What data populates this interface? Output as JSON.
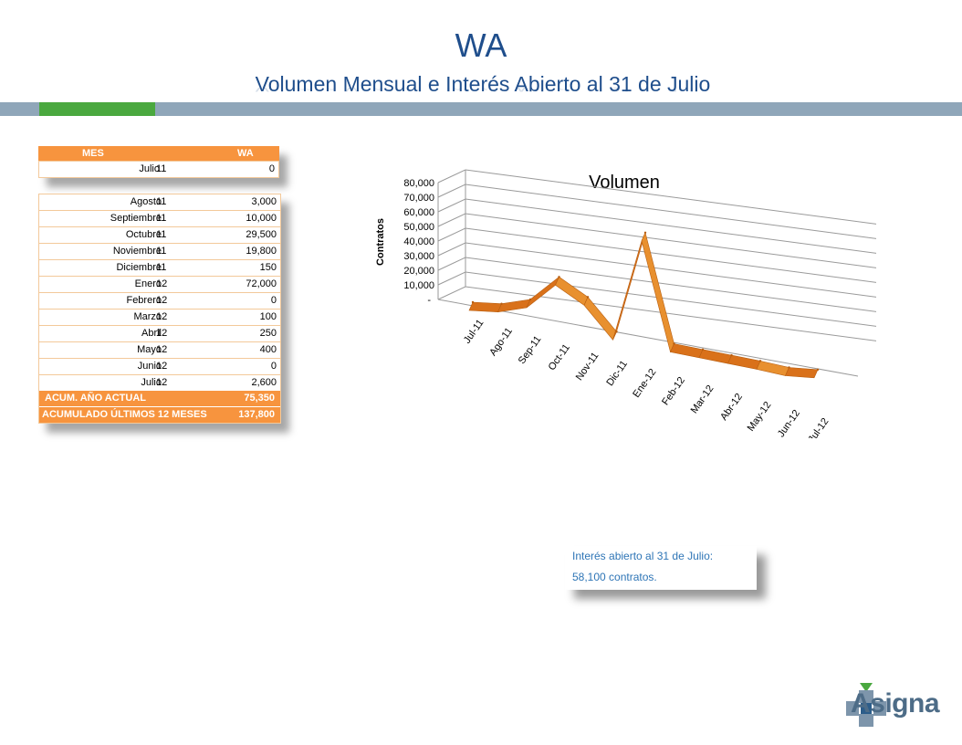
{
  "header": {
    "title": "WA",
    "subtitle": "Volumen Mensual e Interés Abierto al 31 de Julio"
  },
  "colors": {
    "accent": "#f7943e",
    "title": "#1f4e8c",
    "band": "#8fa6b9",
    "band_accent": "#4aa83f",
    "line": "#e07a1f"
  },
  "table_header": {
    "col1": "MES",
    "col2": "WA",
    "rows": [
      {
        "mes": "Julio",
        "yr": "11",
        "val": "0"
      }
    ]
  },
  "table_main": {
    "rows": [
      {
        "mes": "Agosto",
        "yr": "11",
        "val": "3,000"
      },
      {
        "mes": "Septiembre",
        "yr": "11",
        "val": "10,000"
      },
      {
        "mes": "Octubre",
        "yr": "11",
        "val": "29,500"
      },
      {
        "mes": "Noviembre",
        "yr": "11",
        "val": "19,800"
      },
      {
        "mes": "Diciembre",
        "yr": "11",
        "val": "150"
      },
      {
        "mes": "Enero",
        "yr": "12",
        "val": "72,000"
      },
      {
        "mes": "Febrero",
        "yr": "12",
        "val": "0"
      },
      {
        "mes": "Marzo",
        "yr": "12",
        "val": "100"
      },
      {
        "mes": "Abril",
        "yr": "12",
        "val": "250"
      },
      {
        "mes": "Mayo",
        "yr": "12",
        "val": "400"
      },
      {
        "mes": "Junio",
        "yr": "12",
        "val": "0"
      },
      {
        "mes": "Julio",
        "yr": "12",
        "val": "2,600"
      }
    ],
    "acum_label": "ACUM. AÑO ACTUAL",
    "acum_value": "75,350",
    "acum12_label": "ACUMULADO ÚLTIMOS 12 MESES",
    "acum12_value": "137,800"
  },
  "note": {
    "line1": "Interés abierto al 31 de Julio:",
    "line2": "58,100 contratos."
  },
  "logo": {
    "text": "Asigna"
  },
  "chart_data": {
    "type": "line",
    "title": "Volumen",
    "xlabel": "",
    "ylabel": "Contratos",
    "categories": [
      "Jul-11",
      "Ago-11",
      "Sep-11",
      "Oct-11",
      "Nov-11",
      "Dic-11",
      "Ene-12",
      "Feb-12",
      "Mar-12",
      "Abr-12",
      "May-12",
      "Jun-12",
      "Jul-12"
    ],
    "values": [
      0,
      3000,
      10000,
      29500,
      19800,
      150,
      72000,
      0,
      100,
      250,
      400,
      0,
      2600
    ],
    "ylim": [
      0,
      80000
    ],
    "yticks": [
      "-",
      "10,000",
      "20,000",
      "30,000",
      "40,000",
      "50,000",
      "60,000",
      "70,000",
      "80,000"
    ],
    "grid": true,
    "legend": "none",
    "style": "3d-ribbon"
  }
}
